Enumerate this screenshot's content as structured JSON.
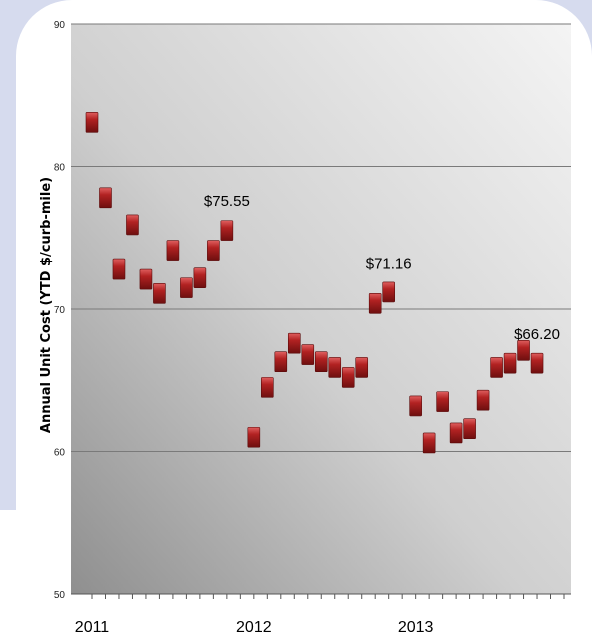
{
  "chart_data": {
    "type": "scatter",
    "ylabel": "Annual Unit Cost (YTD $/curb-mile)",
    "ylim": [
      50,
      90
    ],
    "yticks": [
      50,
      60,
      70,
      80,
      90
    ],
    "grid": true,
    "x_start": "2011-01",
    "x_end": "2013-12",
    "xticks": [
      "2011",
      "2012",
      "2013"
    ],
    "marker_color": "#b22222",
    "points": [
      {
        "x": "2011-01",
        "y": 83.1
      },
      {
        "x": "2011-02",
        "y": 77.8
      },
      {
        "x": "2011-03",
        "y": 72.8
      },
      {
        "x": "2011-04",
        "y": 75.9
      },
      {
        "x": "2011-05",
        "y": 72.1
      },
      {
        "x": "2011-06",
        "y": 71.1
      },
      {
        "x": "2011-07",
        "y": 74.1
      },
      {
        "x": "2011-08",
        "y": 71.5
      },
      {
        "x": "2011-09",
        "y": 72.2
      },
      {
        "x": "2011-10",
        "y": 74.1
      },
      {
        "x": "2011-11",
        "y": 75.5
      },
      {
        "x": "2012-01",
        "y": 61.0
      },
      {
        "x": "2012-02",
        "y": 64.5
      },
      {
        "x": "2012-03",
        "y": 66.3
      },
      {
        "x": "2012-04",
        "y": 67.6
      },
      {
        "x": "2012-05",
        "y": 66.8
      },
      {
        "x": "2012-06",
        "y": 66.3
      },
      {
        "x": "2012-07",
        "y": 65.9
      },
      {
        "x": "2012-08",
        "y": 65.2
      },
      {
        "x": "2012-09",
        "y": 65.9
      },
      {
        "x": "2012-10",
        "y": 70.4
      },
      {
        "x": "2012-11",
        "y": 71.2
      },
      {
        "x": "2013-01",
        "y": 63.2
      },
      {
        "x": "2013-02",
        "y": 60.6
      },
      {
        "x": "2013-03",
        "y": 63.5
      },
      {
        "x": "2013-04",
        "y": 61.3
      },
      {
        "x": "2013-05",
        "y": 61.6
      },
      {
        "x": "2013-06",
        "y": 63.6
      },
      {
        "x": "2013-07",
        "y": 65.9
      },
      {
        "x": "2013-08",
        "y": 66.2
      },
      {
        "x": "2013-09",
        "y": 67.1
      },
      {
        "x": "2013-10",
        "y": 66.2
      }
    ],
    "annotations": [
      {
        "x": "2011-11",
        "y": 75.55,
        "text": "$75.55"
      },
      {
        "x": "2012-11",
        "y": 71.16,
        "text": "$71.16"
      },
      {
        "x": "2013-10",
        "y": 66.2,
        "text": "$66.20"
      }
    ]
  }
}
